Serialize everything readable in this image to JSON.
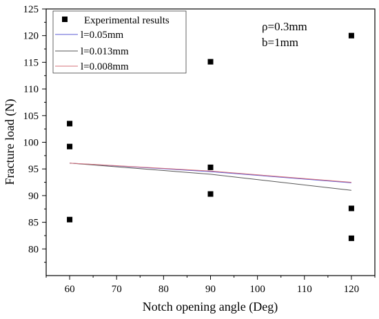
{
  "chart_data": {
    "type": "scatter",
    "xlabel": "Notch opening angle (Deg)",
    "ylabel": "Fracture load (N)",
    "xlim": [
      55,
      125
    ],
    "ylim": [
      75,
      125
    ],
    "xticks": [
      60,
      70,
      80,
      90,
      100,
      110,
      120
    ],
    "yticks": [
      80,
      85,
      90,
      95,
      100,
      105,
      110,
      115,
      120,
      125
    ],
    "grid": false,
    "legend_position": "top-left",
    "annotations": [
      "ρ=0.3mm",
      "b=1mm"
    ],
    "series": [
      {
        "name": "Experimental results",
        "kind": "scatter",
        "marker": "square",
        "color": "#000000",
        "points": [
          {
            "x": 60,
            "y": 103.5
          },
          {
            "x": 60,
            "y": 99.2
          },
          {
            "x": 60,
            "y": 85.5
          },
          {
            "x": 90,
            "y": 115.1
          },
          {
            "x": 90,
            "y": 95.3
          },
          {
            "x": 90,
            "y": 90.3
          },
          {
            "x": 120,
            "y": 120.0
          },
          {
            "x": 120,
            "y": 87.6
          },
          {
            "x": 120,
            "y": 82.0
          }
        ]
      },
      {
        "name": "l=0.05mm",
        "kind": "line",
        "color": "#5b5bd6",
        "points": [
          {
            "x": 60,
            "y": 96.1
          },
          {
            "x": 90,
            "y": 94.5
          },
          {
            "x": 120,
            "y": 92.4
          }
        ]
      },
      {
        "name": "l=0.013mm",
        "kind": "line",
        "color": "#555555",
        "points": [
          {
            "x": 60,
            "y": 96.1
          },
          {
            "x": 90,
            "y": 94.0
          },
          {
            "x": 120,
            "y": 91.0
          }
        ]
      },
      {
        "name": "l=0.008mm",
        "kind": "line",
        "color": "#d6707a",
        "points": [
          {
            "x": 60,
            "y": 96.1
          },
          {
            "x": 90,
            "y": 94.6
          },
          {
            "x": 120,
            "y": 92.5
          }
        ]
      }
    ]
  }
}
